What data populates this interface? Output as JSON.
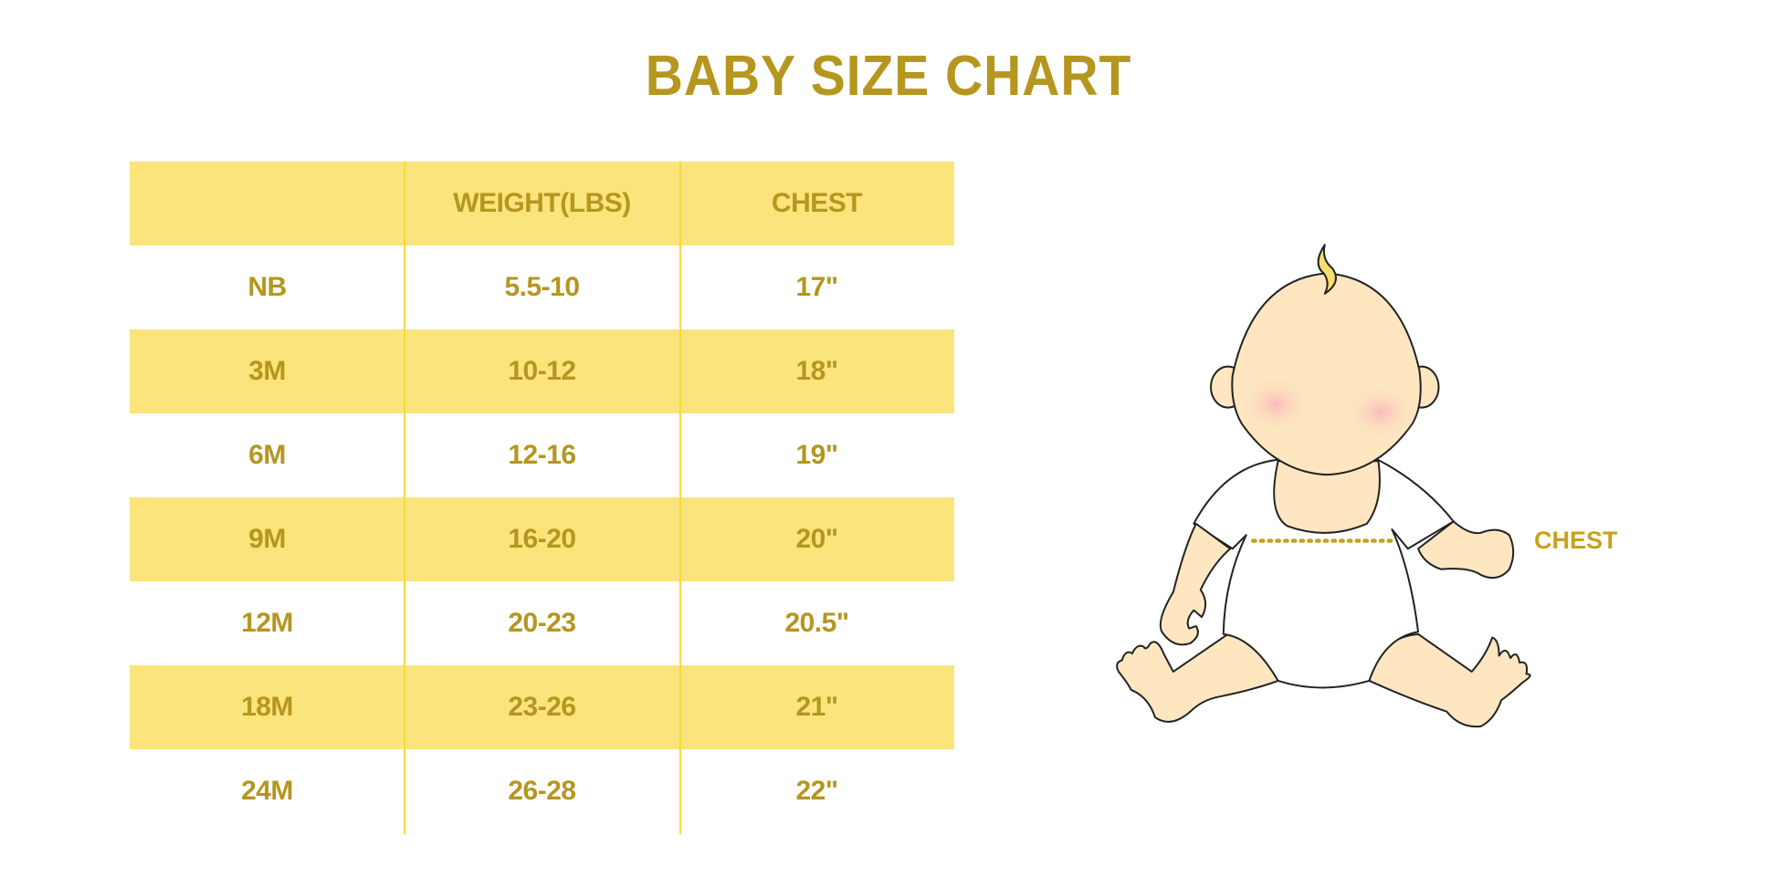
{
  "title": "BABY SIZE CHART",
  "table": {
    "headers": [
      "",
      "WEIGHT(LBS)",
      "CHEST"
    ],
    "rows": [
      [
        "NB",
        "5.5-10",
        "17\""
      ],
      [
        "3M",
        "10-12",
        "18\""
      ],
      [
        "6M",
        "12-16",
        "19\""
      ],
      [
        "9M",
        "16-20",
        "20\""
      ],
      [
        "12M",
        "20-23",
        "20.5\""
      ],
      [
        "18M",
        "23-26",
        "21\""
      ],
      [
        "24M",
        "26-28",
        "22\""
      ]
    ]
  },
  "illustration": {
    "chest_label": "CHEST"
  },
  "colors": {
    "text": "#b5961f",
    "row_fill": "#fbe47b",
    "divider": "#f8d83a",
    "skin": "#fde6c0"
  }
}
